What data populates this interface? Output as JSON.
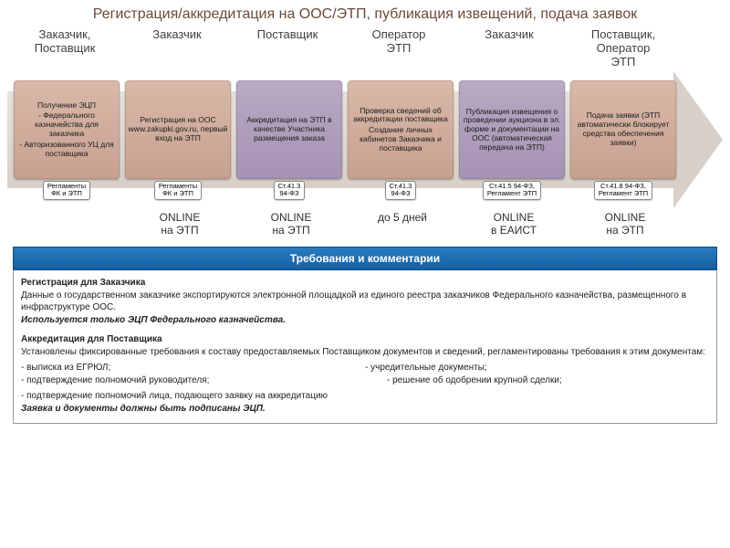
{
  "title": "Регистрация/аккредитация на ООС/ЭТП, публикация извещений, подача заявок",
  "roles": [
    {
      "label": "Заказчик,\nПоставщик",
      "w": 126
    },
    {
      "label": "Заказчик",
      "w": 120
    },
    {
      "label": "Поставщик",
      "w": 122
    },
    {
      "label": "Оператор\nЭТП",
      "w": 122
    },
    {
      "label": "Заказчик",
      "w": 120
    },
    {
      "label": "Поставщик,\nОператор\nЭТП",
      "w": 130
    }
  ],
  "stages": [
    {
      "purple": false,
      "lines": [
        "Получение ЭЦП",
        "- Федерального казначейства для заказчика",
        "- Авторизованного УЦ для поставщика"
      ],
      "tag": "Регламенты\nФК и ЭТП",
      "mode": ""
    },
    {
      "purple": false,
      "lines": [
        "Регистрация на ООС www.zakupki.gov.ru, первый вход на ЭТП"
      ],
      "tag": "Регламенты\nФК и ЭТП",
      "mode": "ONLINE\nна ЭТП"
    },
    {
      "purple": true,
      "lines": [
        "Аккредитация на ЭТП в качестве Участника размещения заказа"
      ],
      "tag": "Ст.41.3\n94-ФЗ",
      "mode": "ONLINE\nна ЭТП"
    },
    {
      "purple": false,
      "lines": [
        "Проверка сведений об аккредитации поставщика",
        "Создание личных кабинетов Заказчика и поставщика"
      ],
      "tag": "Ст.41.3\n94-ФЗ",
      "mode": "до 5 дней"
    },
    {
      "purple": true,
      "lines": [
        "Публикация извещения о проведении аукциона в эл. форме и документации на ООС (автоматическая передача на ЭТП)"
      ],
      "tag": "Ст.41.5 94-ФЗ,\nРегламент ЭТП",
      "mode": "ONLINE\nв ЕАИСТ"
    },
    {
      "purple": false,
      "lines": [
        "Подача заявки (ЭТП автоматически блокирует средства обеспечения заявки)"
      ],
      "tag": "Ст.41.8 94-ФЗ,\nРегламент ЭТП",
      "mode": "ONLINE\nна ЭТП"
    }
  ],
  "req_header": "Требования и комментарии",
  "req": {
    "h1": "Регистрация для Заказчика",
    "p1": "Данные о государственном заказчике экспортируются электронной площадкой из единого реестра заказчиков Федерального казначейства, размещенного в инфраструктуре ООС.",
    "p1i": "Используется только ЭЦП Федерального казначейства.",
    "h2": "Аккредитация для Поставщика",
    "p2": "Установлены фиксированные требования к составу предоставляемых Поставщиком документов и сведений, регламентированы требования к этим документам:",
    "col_a1": " - выписка из ЕГРЮЛ;",
    "col_b1": "- учредительные документы;",
    "col_a2": "- подтверждение полномочий руководителя;",
    "col_b2": "- решение об одобрении крупной сделки;",
    "p3": "- подтверждение полномочий лица, подающего заявку на аккредитацию",
    "p4": "Заявка и документы должны быть подписаны ЭЦП."
  },
  "colors": {
    "title_color": "#6b4a3a",
    "stage_bg": "#c8a090",
    "stage_purple_bg": "#a693b3",
    "arrow_bg": "#d8d0c8",
    "header_bg": "#1560a0"
  }
}
